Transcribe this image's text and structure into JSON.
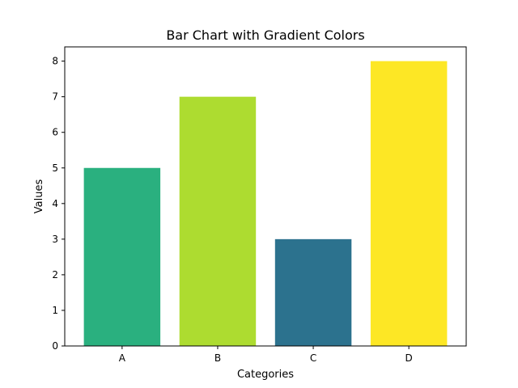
{
  "chart_data": {
    "type": "bar",
    "title": "Bar Chart with Gradient Colors",
    "xlabel": "Categories",
    "ylabel": "Values",
    "categories": [
      "A",
      "B",
      "C",
      "D"
    ],
    "values": [
      5,
      7,
      3,
      8
    ],
    "colors": [
      "#2ab07f",
      "#addc30",
      "#2c728e",
      "#fde725"
    ],
    "ylim": [
      0,
      8.4
    ],
    "yticks": [
      0,
      1,
      2,
      3,
      4,
      5,
      6,
      7,
      8
    ],
    "grid": false,
    "legend": "none"
  }
}
